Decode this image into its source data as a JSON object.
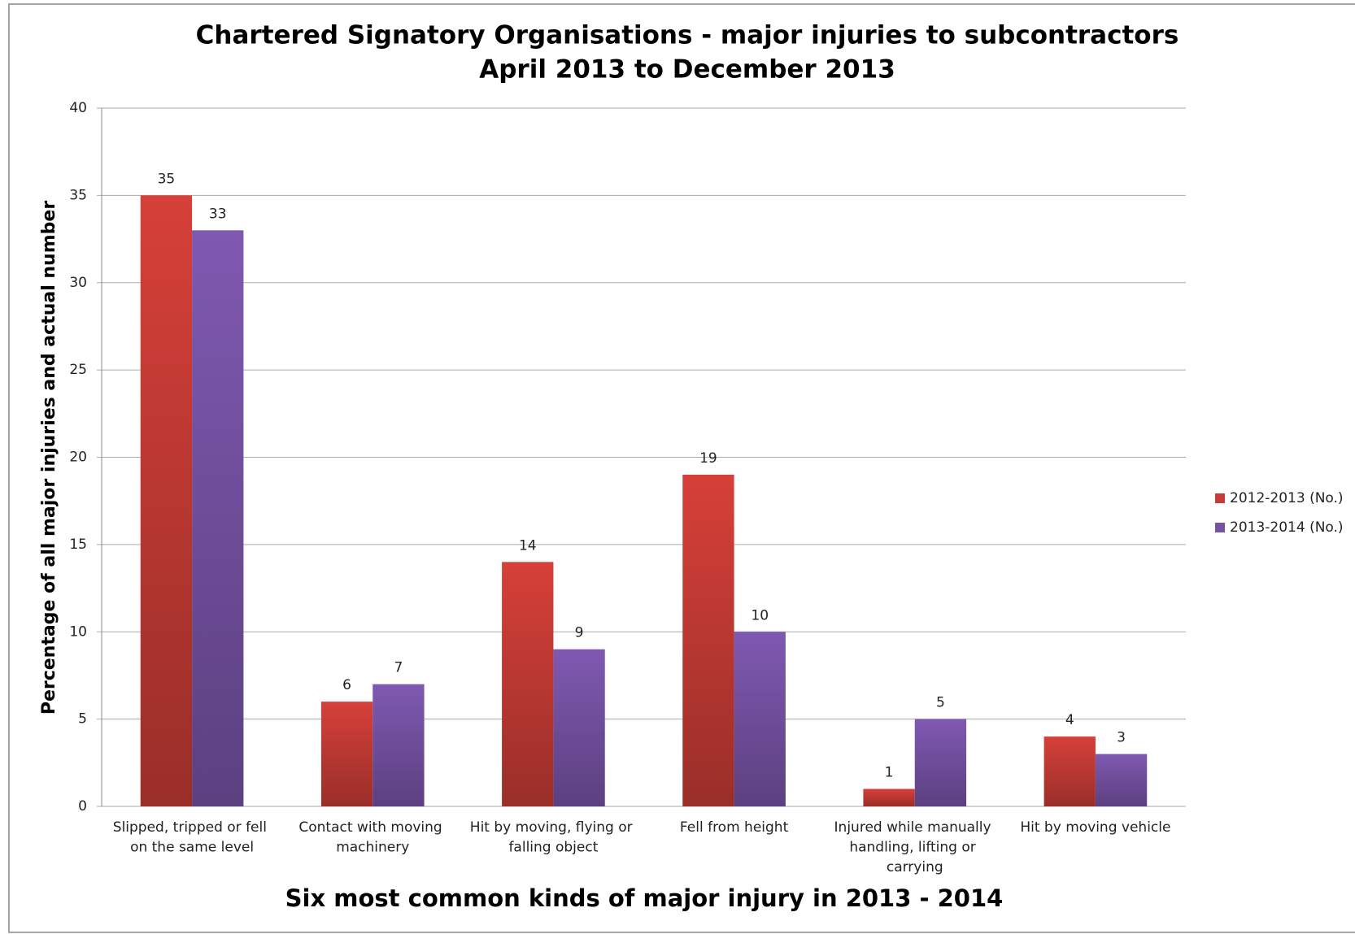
{
  "chart_data": {
    "type": "bar",
    "title": "Chartered Signatory Organisations - major injuries to subcontractors",
    "subtitle": "April 2013 to December 2013",
    "x_label": "Six most common kinds of major injury in 2013  - 2014",
    "y_label": "Percentage of all major injuries and actual number",
    "categories": [
      "Slipped, tripped or fell on the same level",
      "Contact with moving machinery",
      "Hit by moving, flying or falling object",
      "Fell from height",
      "Injured while manually handling, lifting or carrying",
      "Hit by moving vehicle"
    ],
    "series": [
      {
        "name": "2012-2013 (No.)",
        "color": "#c63b35",
        "values": [
          35,
          6,
          14,
          19,
          1,
          4
        ]
      },
      {
        "name": "2013-2014 (No.)",
        "color": "#7652a4",
        "values": [
          33,
          7,
          9,
          10,
          5,
          3
        ]
      }
    ],
    "ylim": [
      0,
      40
    ],
    "yticks": [
      0,
      5,
      10,
      15,
      20,
      25,
      30,
      35,
      40
    ],
    "grid": true,
    "legend": "right"
  }
}
